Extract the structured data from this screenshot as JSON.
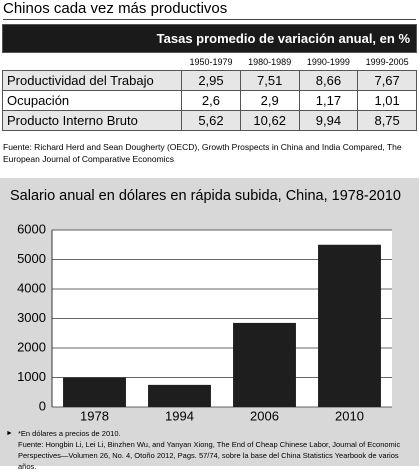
{
  "header": {
    "title": "Chinos cada vez más productivos"
  },
  "table": {
    "caption": "Tasas promedio de variación anual, en %",
    "columns": [
      "1950-1979",
      "1980-1989",
      "1990-1999",
      "1999-2005"
    ],
    "rows": [
      [
        "Productividad del Trabajo",
        "2,95",
        "7,51",
        "8,66",
        "7,67"
      ],
      [
        "Ocupación",
        "2,6",
        "2,9",
        "1,17",
        "1,01"
      ],
      [
        "Producto Interno Bruto",
        "5,62",
        "10,62",
        "9,94",
        "8,75"
      ]
    ]
  },
  "source": "Fuente: Richard Herd and Sean Dougherty (OECD), Growth Prospects in China and India Compared, The European Journal of Comparative Economics",
  "chart_data": {
    "type": "bar",
    "title": "Salario anual en dólares en rápida subida, China, 1978-2010",
    "categories": [
      "1978",
      "1994",
      "2006",
      "2010"
    ],
    "values": [
      1000,
      750,
      2850,
      5500
    ],
    "color": "#1e1e1e",
    "ylim": [
      0,
      6000
    ],
    "yticks": [
      0,
      1000,
      2000,
      3000,
      4000,
      5000,
      6000
    ],
    "grid": true,
    "footnote": [
      "*En dólares a precios de 2010.",
      "Fuente: Hongbin Li, Lei Li, Binzhen Wu, and Yanyan Xiong, The End of Cheap Chinese Labor, Journal of Economic Perspectives—Volumen 26, No. 4, Otoño 2012, Pags. 57/74, sobre la base del China Statistics Yearbook de varios años."
    ]
  }
}
